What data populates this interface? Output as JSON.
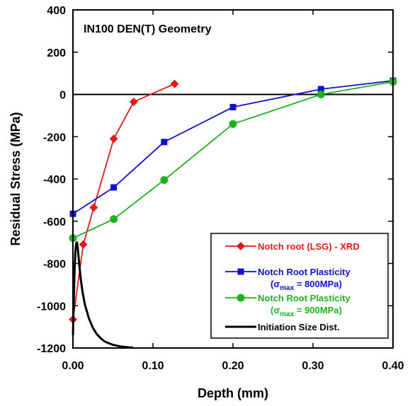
{
  "chart_data": {
    "type": "line",
    "annotation": "IN100 DEN(T) Geometry",
    "xlabel": "Depth (mm)",
    "ylabel": "Residual Stress (MPa)",
    "xlim": [
      0,
      0.4
    ],
    "ylim": [
      -1200,
      400
    ],
    "x_ticks": [
      "0.00",
      "0.10",
      "0.20",
      "0.30",
      "0.40"
    ],
    "y_ticks": [
      "400",
      "200",
      "0",
      "-200",
      "-400",
      "-600",
      "-800",
      "-1000",
      "-1200"
    ],
    "x_tick_values": [
      0,
      0.1,
      0.2,
      0.3,
      0.4
    ],
    "y_tick_values": [
      400,
      200,
      0,
      -200,
      -400,
      -600,
      -800,
      -1000,
      -1200
    ],
    "zero_line": 0,
    "grid": false,
    "legend_position": "bottom-right",
    "series": [
      {
        "name": "Notch root (LSG) - XRD",
        "color": "#e31a1c",
        "marker": "diamond",
        "x": [
          0,
          0.013,
          0.026,
          0.051,
          0.076,
          0.127
        ],
        "y": [
          -1065,
          -710,
          -535,
          -210,
          -35,
          50
        ]
      },
      {
        "name": "Notch Root Plasticity",
        "legend_sub": {
          "prefix": "(σ",
          "sub": "max",
          "suffix": " = 800MPa)"
        },
        "color": "#1010d0",
        "marker": "square",
        "x": [
          0,
          0.051,
          0.114,
          0.2,
          0.31,
          0.4
        ],
        "y": [
          -565,
          -440,
          -225,
          -60,
          25,
          65
        ]
      },
      {
        "name": "Notch Root Plasticity",
        "legend_sub": {
          "prefix": "(σ",
          "sub": "max",
          "suffix": " = 900MPa)"
        },
        "color": "#20b020",
        "marker": "circle",
        "x": [
          0,
          0.051,
          0.114,
          0.2,
          0.31,
          0.4
        ],
        "y": [
          -680,
          -590,
          -405,
          -140,
          0,
          60
        ]
      },
      {
        "name": "Initiation Size Dist.",
        "color": "#000000",
        "marker": "none",
        "stroke_width": 3,
        "x": [
          0.0,
          0.001,
          0.002,
          0.003,
          0.004,
          0.005,
          0.006,
          0.008,
          0.01,
          0.012,
          0.015,
          0.02,
          0.025,
          0.03,
          0.035,
          0.04,
          0.05,
          0.06,
          0.07,
          0.075
        ],
        "y": [
          -1140,
          -980,
          -840,
          -750,
          -705,
          -700,
          -725,
          -810,
          -880,
          -935,
          -995,
          -1060,
          -1105,
          -1135,
          -1155,
          -1170,
          -1185,
          -1193,
          -1197,
          -1198
        ]
      }
    ]
  }
}
